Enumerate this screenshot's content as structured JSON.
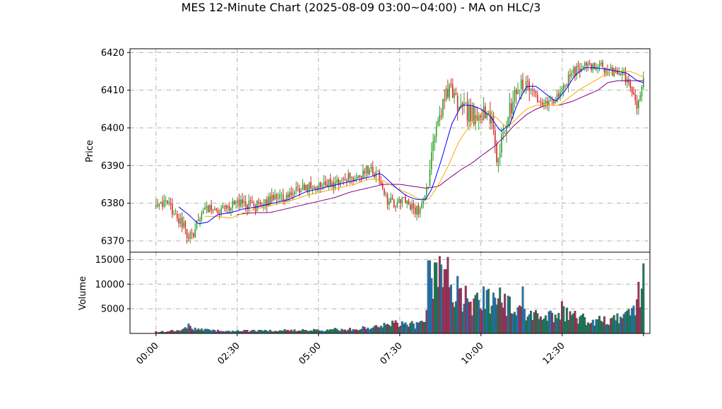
{
  "chart_data": {
    "type": "candlestick",
    "title": "MES 12-Minute Chart (2025-08-09 03:00~04:00) - MA on HLC/3",
    "price_panel": {
      "ylabel": "Price",
      "ylim": [
        6367,
        6421
      ],
      "yticks": [
        6370,
        6380,
        6390,
        6400,
        6410,
        6420
      ],
      "grid": true
    },
    "volume_panel": {
      "ylabel": "Volume",
      "ylim": [
        0,
        16500
      ],
      "yticks": [
        5000,
        10000,
        15000
      ],
      "grid": true
    },
    "x_axis": {
      "tick_labels": [
        "00:00",
        "02:30",
        "05:00",
        "07:30",
        "10:00",
        "12:30"
      ],
      "tick_hours": [
        0,
        2.5,
        5,
        7.5,
        10,
        12.5
      ],
      "range_hours": [
        -0.8,
        15.2
      ],
      "last_tick_hour": 15
    },
    "colors": {
      "up": "#2ca02c",
      "down": "#d62728",
      "ma_fast": "#0000ff",
      "ma_mid": "#ffa500",
      "ma_slow": "#800080",
      "vol_up": "#1f7a5a",
      "vol_down": "#a0325a",
      "vol_neutral": "#1f77b4"
    },
    "price_path": [
      [
        0,
        6379
      ],
      [
        0.3,
        6381
      ],
      [
        0.5,
        6378
      ],
      [
        0.8,
        6375
      ],
      [
        1.0,
        6371
      ],
      [
        1.2,
        6373
      ],
      [
        1.4,
        6377
      ],
      [
        1.6,
        6379
      ],
      [
        1.8,
        6378
      ],
      [
        2.1,
        6378
      ],
      [
        2.4,
        6380
      ],
      [
        2.7,
        6380
      ],
      [
        3.0,
        6379
      ],
      [
        3.3,
        6380
      ],
      [
        3.6,
        6381
      ],
      [
        4.0,
        6381
      ],
      [
        4.3,
        6383
      ],
      [
        4.7,
        6384
      ],
      [
        5.0,
        6385
      ],
      [
        5.3,
        6385
      ],
      [
        5.7,
        6386
      ],
      [
        6.0,
        6387
      ],
      [
        6.3,
        6388
      ],
      [
        6.6,
        6389
      ],
      [
        6.9,
        6387
      ],
      [
        7.1,
        6381
      ],
      [
        7.3,
        6380
      ],
      [
        7.6,
        6381
      ],
      [
        7.9,
        6379
      ],
      [
        8.1,
        6378
      ],
      [
        8.3,
        6382
      ],
      [
        8.5,
        6394
      ],
      [
        8.7,
        6402
      ],
      [
        8.9,
        6408
      ],
      [
        9.1,
        6410
      ],
      [
        9.3,
        6406
      ],
      [
        9.6,
        6404
      ],
      [
        9.8,
        6403
      ],
      [
        10.0,
        6404
      ],
      [
        10.3,
        6403
      ],
      [
        10.5,
        6392
      ],
      [
        10.7,
        6398
      ],
      [
        10.9,
        6405
      ],
      [
        11.1,
        6410
      ],
      [
        11.4,
        6412
      ],
      [
        11.6,
        6411
      ],
      [
        11.8,
        6406
      ],
      [
        12.1,
        6406
      ],
      [
        12.4,
        6408
      ],
      [
        12.6,
        6412
      ],
      [
        12.9,
        6415
      ],
      [
        13.2,
        6417
      ],
      [
        13.5,
        6416
      ],
      [
        13.8,
        6416
      ],
      [
        14.1,
        6415
      ],
      [
        14.4,
        6414
      ],
      [
        14.6,
        6411
      ],
      [
        14.8,
        6405
      ],
      [
        15.0,
        6412
      ]
    ],
    "ma_fast_path": [
      [
        0.7,
        6379
      ],
      [
        1.0,
        6377
      ],
      [
        1.3,
        6374.5
      ],
      [
        1.6,
        6375
      ],
      [
        1.9,
        6377
      ],
      [
        2.3,
        6377.5
      ],
      [
        2.7,
        6378.5
      ],
      [
        3.1,
        6379
      ],
      [
        3.6,
        6380
      ],
      [
        4.1,
        6381
      ],
      [
        4.6,
        6383
      ],
      [
        5.1,
        6384
      ],
      [
        5.6,
        6385
      ],
      [
        6.1,
        6386
      ],
      [
        6.6,
        6387
      ],
      [
        6.9,
        6388
      ],
      [
        7.1,
        6386.5
      ],
      [
        7.4,
        6384
      ],
      [
        7.7,
        6382
      ],
      [
        8.0,
        6381
      ],
      [
        8.3,
        6381
      ],
      [
        8.5,
        6384
      ],
      [
        8.8,
        6392
      ],
      [
        9.1,
        6401
      ],
      [
        9.4,
        6406
      ],
      [
        9.7,
        6406
      ],
      [
        10.0,
        6405
      ],
      [
        10.3,
        6403
      ],
      [
        10.6,
        6399
      ],
      [
        10.9,
        6401
      ],
      [
        11.1,
        6406
      ],
      [
        11.4,
        6411
      ],
      [
        11.7,
        6411
      ],
      [
        12.0,
        6409
      ],
      [
        12.3,
        6407
      ],
      [
        12.6,
        6410
      ],
      [
        12.9,
        6414
      ],
      [
        13.2,
        6416
      ],
      [
        13.5,
        6416
      ],
      [
        13.9,
        6415.5
      ],
      [
        14.2,
        6415
      ],
      [
        14.5,
        6414.5
      ],
      [
        14.8,
        6412.5
      ],
      [
        15.0,
        6412
      ]
    ],
    "ma_mid_path": [
      [
        1.5,
        6376.5
      ],
      [
        1.9,
        6376.5
      ],
      [
        2.3,
        6376
      ],
      [
        2.7,
        6377.5
      ],
      [
        3.1,
        6378.5
      ],
      [
        3.6,
        6379.5
      ],
      [
        4.1,
        6380.5
      ],
      [
        4.6,
        6382
      ],
      [
        5.1,
        6383
      ],
      [
        5.6,
        6384
      ],
      [
        6.1,
        6385
      ],
      [
        6.6,
        6386.5
      ],
      [
        7.0,
        6386
      ],
      [
        7.4,
        6384
      ],
      [
        7.8,
        6382.5
      ],
      [
        8.1,
        6381
      ],
      [
        8.4,
        6381
      ],
      [
        8.7,
        6385
      ],
      [
        9.0,
        6390
      ],
      [
        9.3,
        6396
      ],
      [
        9.6,
        6400
      ],
      [
        9.9,
        6403
      ],
      [
        10.2,
        6404.5
      ],
      [
        10.5,
        6402.5
      ],
      [
        10.8,
        6400
      ],
      [
        11.1,
        6402.5
      ],
      [
        11.4,
        6405
      ],
      [
        11.7,
        6406
      ],
      [
        12.0,
        6406
      ],
      [
        12.4,
        6406
      ],
      [
        12.7,
        6408
      ],
      [
        13.0,
        6410
      ],
      [
        13.3,
        6411.5
      ],
      [
        13.6,
        6413
      ],
      [
        13.9,
        6414.5
      ],
      [
        14.2,
        6415
      ],
      [
        14.6,
        6415
      ],
      [
        15.0,
        6413.5
      ]
    ],
    "ma_slow_path": [
      [
        2.5,
        6377
      ],
      [
        3.0,
        6377.5
      ],
      [
        3.5,
        6377.5
      ],
      [
        4.0,
        6378.5
      ],
      [
        4.5,
        6379.5
      ],
      [
        5.0,
        6380.5
      ],
      [
        5.5,
        6381.5
      ],
      [
        6.0,
        6383
      ],
      [
        6.5,
        6384
      ],
      [
        7.0,
        6385
      ],
      [
        7.5,
        6385
      ],
      [
        7.9,
        6384.5
      ],
      [
        8.3,
        6384
      ],
      [
        8.7,
        6384.5
      ],
      [
        9.0,
        6386.5
      ],
      [
        9.4,
        6389
      ],
      [
        9.7,
        6390.5
      ],
      [
        10.0,
        6392.5
      ],
      [
        10.4,
        6395
      ],
      [
        10.7,
        6397.5
      ],
      [
        11.0,
        6400.5
      ],
      [
        11.4,
        6403.5
      ],
      [
        11.7,
        6405
      ],
      [
        12.0,
        6406
      ],
      [
        12.4,
        6406
      ],
      [
        12.8,
        6407
      ],
      [
        13.2,
        6408.5
      ],
      [
        13.6,
        6410
      ],
      [
        13.9,
        6412
      ],
      [
        14.2,
        6412.5
      ],
      [
        14.6,
        6412.5
      ],
      [
        15.0,
        6412.5
      ]
    ],
    "volume_path": [
      [
        0,
        300
      ],
      [
        0.8,
        600
      ],
      [
        1.0,
        1400
      ],
      [
        1.3,
        700
      ],
      [
        2.0,
        500
      ],
      [
        3.0,
        500
      ],
      [
        4.0,
        600
      ],
      [
        5.0,
        600
      ],
      [
        6.0,
        900
      ],
      [
        6.8,
        1200
      ],
      [
        7.3,
        2000
      ],
      [
        7.7,
        1800
      ],
      [
        8.1,
        1600
      ],
      [
        8.3,
        2500
      ],
      [
        8.5,
        10500
      ],
      [
        8.8,
        11000
      ],
      [
        9.1,
        9000
      ],
      [
        9.5,
        7500
      ],
      [
        9.8,
        6000
      ],
      [
        10.2,
        7000
      ],
      [
        10.5,
        6500
      ],
      [
        10.8,
        5500
      ],
      [
        11.2,
        4500
      ],
      [
        11.6,
        4000
      ],
      [
        12.0,
        4000
      ],
      [
        12.4,
        4000
      ],
      [
        12.8,
        3500
      ],
      [
        13.2,
        3000
      ],
      [
        13.6,
        2500
      ],
      [
        14.0,
        2500
      ],
      [
        14.4,
        3500
      ],
      [
        14.6,
        4500
      ],
      [
        14.8,
        7000
      ],
      [
        15.0,
        10000
      ]
    ],
    "volume_spikes": [
      [
        8.4,
        14800
      ],
      [
        8.6,
        14400
      ],
      [
        9.0,
        15500
      ],
      [
        8.9,
        13000
      ],
      [
        9.4,
        9200
      ],
      [
        10.6,
        9300
      ],
      [
        10.2,
        8800
      ],
      [
        11.3,
        9500
      ],
      [
        12.5,
        6500
      ],
      [
        15.0,
        14200
      ]
    ]
  }
}
